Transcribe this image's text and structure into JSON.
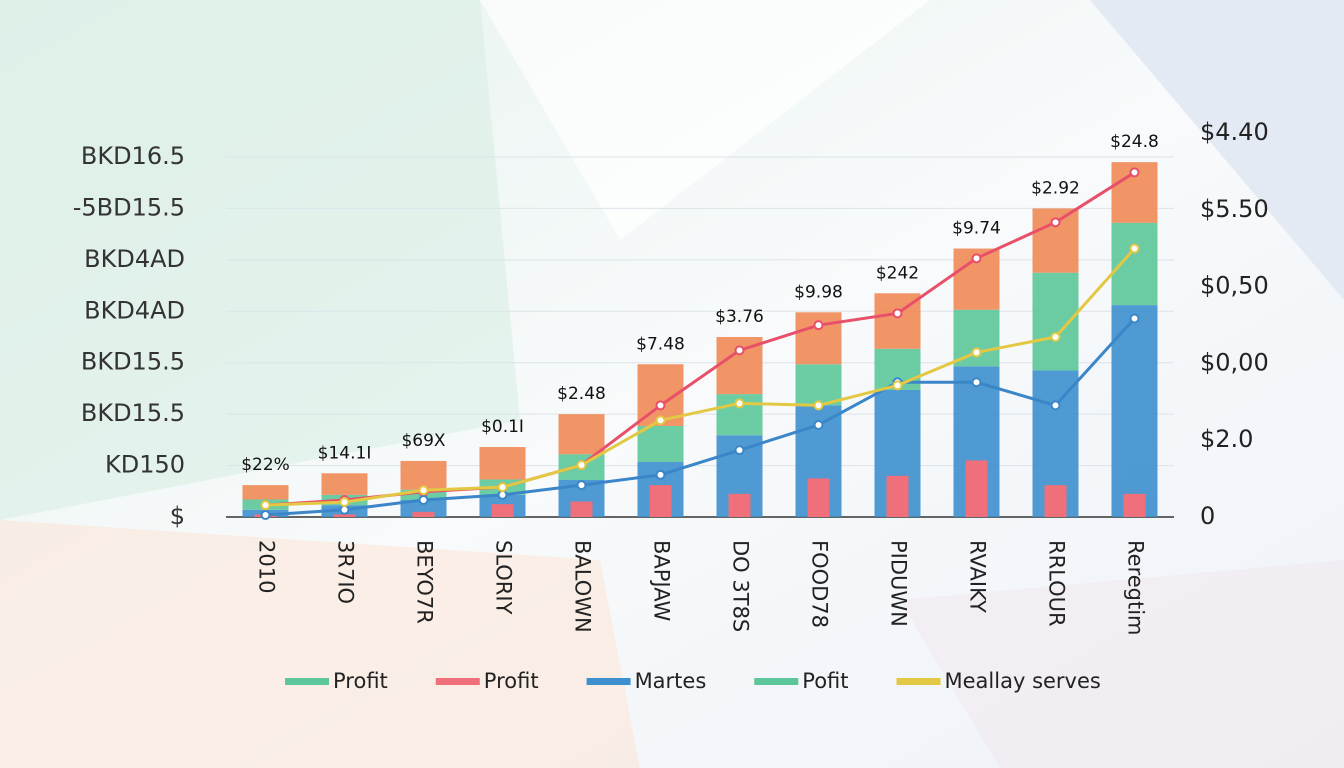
{
  "chart_data": {
    "type": "bar",
    "categories": [
      "2010",
      "3R7IO",
      "BEYO7R",
      "SLORIY",
      "BALOWN",
      "BAPJAW",
      "DO 3T8S",
      "FOOD78",
      "PIDUWN",
      "RVAIKY",
      "RRLOUR",
      "Reregtim"
    ],
    "series": [
      {
        "type": "bar",
        "name": "Martes",
        "color": "#3d8fce",
        "values": [
          0.14,
          0.23,
          0.33,
          0.43,
          0.72,
          1.07,
          1.59,
          2.17,
          2.47,
          2.93,
          2.85,
          4.12
        ]
      },
      {
        "type": "bar",
        "name": "Profit",
        "color": "#5cc79a",
        "values": [
          0.2,
          0.2,
          0.2,
          0.3,
          0.5,
          0.7,
          0.8,
          0.8,
          0.8,
          1.1,
          1.9,
          1.6
        ]
      },
      {
        "type": "bar",
        "color": "#ef8a55",
        "values": [
          0.28,
          0.42,
          0.56,
          0.63,
          0.78,
          1.2,
          1.11,
          1.01,
          1.08,
          1.19,
          1.25,
          1.18
        ]
      },
      {
        "type": "overlay",
        "color": "#ef6f7a",
        "values": [
          0.05,
          0.05,
          0.1,
          0.25,
          0.3,
          0.62,
          0.45,
          0.75,
          0.8,
          1.1,
          0.62,
          0.45
        ]
      },
      {
        "type": "line",
        "color": "#e8506a",
        "values": [
          0.23,
          0.33,
          0.49,
          0.58,
          1.01,
          2.17,
          3.24,
          3.73,
          3.96,
          5.03,
          5.73,
          6.7
        ]
      },
      {
        "type": "line",
        "color": "#3a86c8",
        "values": [
          0.04,
          0.14,
          0.33,
          0.43,
          0.62,
          0.82,
          1.3,
          1.79,
          2.62,
          2.62,
          2.17,
          3.86
        ]
      },
      {
        "type": "line",
        "color": "#e3c843",
        "values": [
          0.23,
          0.29,
          0.52,
          0.58,
          1.01,
          1.88,
          2.21,
          2.17,
          2.56,
          3.2,
          3.5,
          5.22
        ]
      }
    ],
    "annotations": [
      "$22%",
      "$14.1I",
      "$69X",
      "$0.1I",
      "$2.48",
      "$7.48",
      "$3.76",
      "$9.98",
      "$242",
      "$9.74",
      "$2.92",
      "$24.8"
    ],
    "legend": [
      {
        "name": "Profit",
        "color": "#5cc79a"
      },
      {
        "name": "Profit",
        "color": "#ef6f7a"
      },
      {
        "name": "Martes",
        "color": "#3d8fce"
      },
      {
        "name": "Pofit",
        "color": "#5cc79a"
      },
      {
        "name": "Meallay serves",
        "color": "#e3c843"
      }
    ],
    "ylim": [
      0,
      7
    ],
    "yticks": [
      {
        "value": 0,
        "label": "$"
      },
      {
        "value": 1,
        "label": "KD150"
      },
      {
        "value": 2,
        "label": "BKD15.5"
      },
      {
        "value": 3,
        "label": "BKD15.5"
      },
      {
        "value": 4,
        "label": "BKD4AD"
      },
      {
        "value": 5,
        "label": "BKD4AD"
      },
      {
        "value": 6,
        "label": "-5BD15.5"
      },
      {
        "value": 7,
        "label": "BKD16.5"
      }
    ],
    "y2lim": [
      0,
      5
    ],
    "y2ticks": [
      0,
      {
        "value": 1,
        "label": "$2.0"
      },
      {
        "value": 2,
        "label": "$0,00"
      },
      {
        "value": 3,
        "label": "$0,50"
      },
      {
        "value": 4,
        "label": "$5.50"
      },
      {
        "value": 5,
        "label": "$4.40"
      }
    ],
    "grid": true
  }
}
